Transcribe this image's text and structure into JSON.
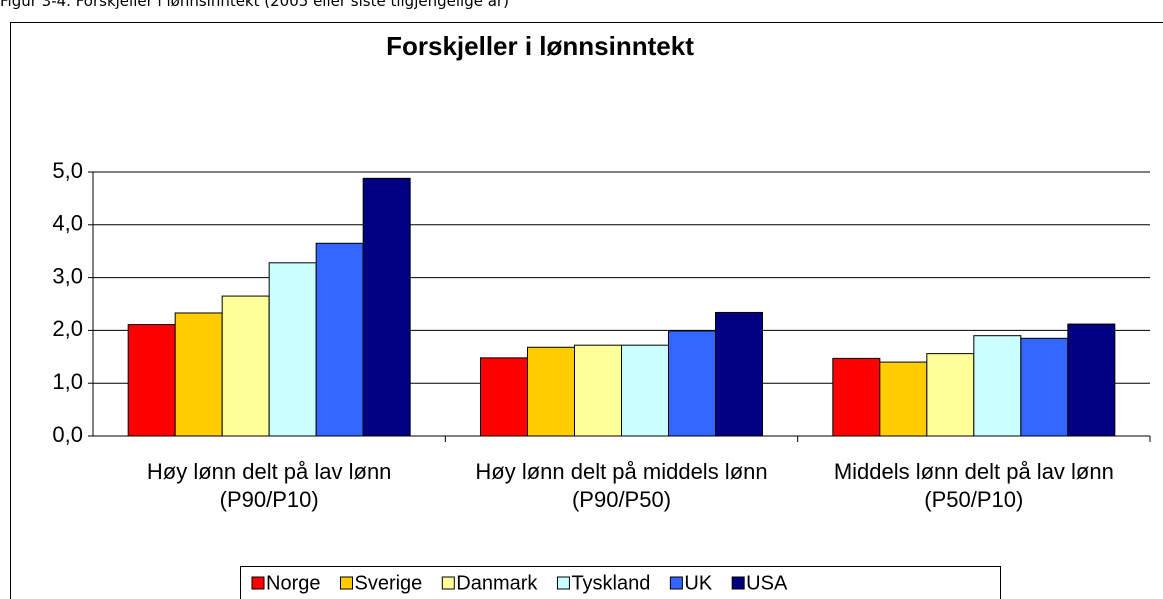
{
  "caption": "Figur 3-4. Forskjeller i lønnsinntekt (2005 eller siste tilgjengelige år)",
  "chart_data": {
    "type": "bar",
    "title": "Forskjeller i lønnsinntekt",
    "categories": [
      "Høy lønn delt på lav lønn (P90/P10)",
      "Høy lønn delt på middels lønn (P90/P50)",
      "Middels lønn delt på lav lønn (P50/P10)"
    ],
    "series": [
      {
        "name": "Norge",
        "color": "#ff0000",
        "values": [
          2.11,
          1.48,
          1.47
        ]
      },
      {
        "name": "Sverige",
        "color": "#ffcc00",
        "values": [
          2.33,
          1.68,
          1.4
        ]
      },
      {
        "name": "Danmark",
        "color": "#ffff99",
        "values": [
          2.65,
          1.72,
          1.56
        ]
      },
      {
        "name": "Tyskland",
        "color": "#ccffff",
        "values": [
          3.28,
          1.72,
          1.9
        ]
      },
      {
        "name": "UK",
        "color": "#3366ff",
        "values": [
          3.65,
          1.99,
          1.85
        ]
      },
      {
        "name": "USA",
        "color": "#000080",
        "values": [
          4.88,
          2.34,
          2.12
        ]
      }
    ],
    "ylim": [
      0,
      5
    ],
    "yticks": [
      {
        "value": 0,
        "label": "0,0"
      },
      {
        "value": 1,
        "label": "1,0"
      },
      {
        "value": 2,
        "label": "2,0"
      },
      {
        "value": 3,
        "label": "3,0"
      },
      {
        "value": 4,
        "label": "4,0"
      },
      {
        "value": 5,
        "label": "5,0"
      }
    ],
    "grid": true,
    "legend": "bottom"
  }
}
